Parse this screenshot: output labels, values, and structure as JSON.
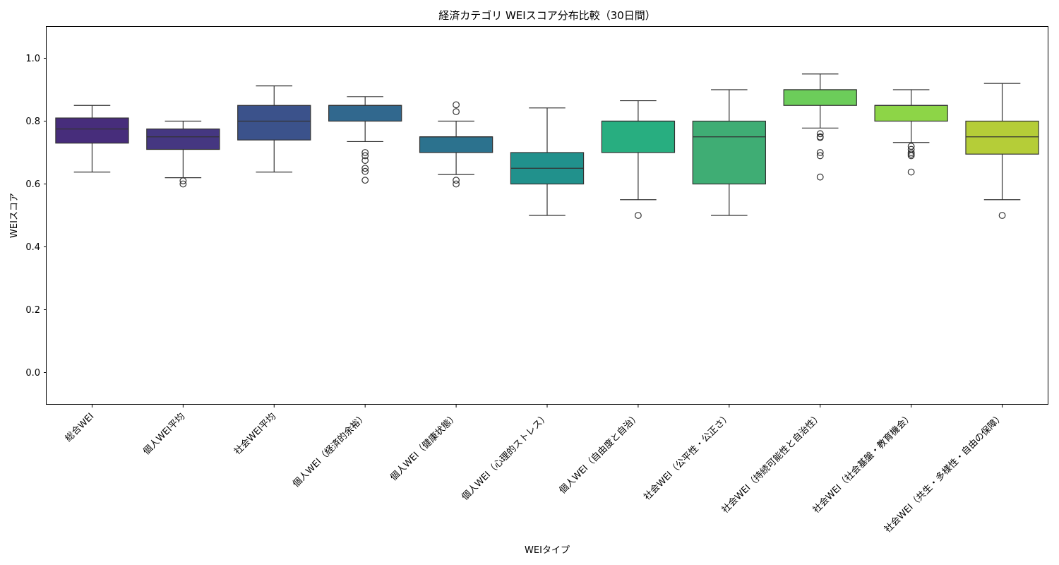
{
  "chart_data": {
    "type": "box",
    "title": "経済カテゴリ WEIスコア分布比較（30日間）",
    "xlabel": "WEIタイプ",
    "ylabel": "WEIスコア",
    "ylim": [
      -0.1,
      1.1
    ],
    "yticks": [
      "0.0",
      "0.2",
      "0.4",
      "0.6",
      "0.8",
      "1.0"
    ],
    "grid": false,
    "legend": "none",
    "categories": [
      "総合WEI",
      "個人WEI平均",
      "社会WEI平均",
      "個人WEI（経済的余裕）",
      "個人WEI（健康状態）",
      "個人WEI（心理的ストレス）",
      "個人WEI（自由度と自治）",
      "社会WEI（公平性・公正さ）",
      "社会WEI（持続可能性と自治性）",
      "社会WEI（社会基盤・教育機会）",
      "社会WEI（共生・多様性・自由の保障）"
    ],
    "boxes": [
      {
        "whisker_low": 0.638,
        "q1": 0.73,
        "median": 0.775,
        "q3": 0.81,
        "whisker_high": 0.85,
        "outliers": [],
        "color": "#472d7b"
      },
      {
        "whisker_low": 0.62,
        "q1": 0.71,
        "median": 0.75,
        "q3": 0.775,
        "whisker_high": 0.8,
        "outliers": [
          0.6,
          0.61
        ],
        "color": "#453781"
      },
      {
        "whisker_low": 0.638,
        "q1": 0.74,
        "median": 0.8,
        "q3": 0.85,
        "whisker_high": 0.912,
        "outliers": [],
        "color": "#3b528b"
      },
      {
        "whisker_low": 0.735,
        "q1": 0.8,
        "median": 0.85,
        "q3": 0.85,
        "whisker_high": 0.878,
        "outliers": [
          0.7,
          0.69,
          0.675,
          0.65,
          0.64,
          0.612
        ],
        "color": "#31688e"
      },
      {
        "whisker_low": 0.63,
        "q1": 0.7,
        "median": 0.75,
        "q3": 0.75,
        "whisker_high": 0.8,
        "outliers": [
          0.852,
          0.83,
          0.612,
          0.6
        ],
        "color": "#2c728e"
      },
      {
        "whisker_low": 0.5,
        "q1": 0.6,
        "median": 0.65,
        "q3": 0.7,
        "whisker_high": 0.842,
        "outliers": [],
        "color": "#21918c"
      },
      {
        "whisker_low": 0.55,
        "q1": 0.7,
        "median": 0.8,
        "q3": 0.8,
        "whisker_high": 0.865,
        "outliers": [
          0.5
        ],
        "color": "#28ae80"
      },
      {
        "whisker_low": 0.5,
        "q1": 0.6,
        "median": 0.75,
        "q3": 0.8,
        "whisker_high": 0.9,
        "outliers": [],
        "color": "#3fad74"
      },
      {
        "whisker_low": 0.778,
        "q1": 0.85,
        "median": 0.9,
        "q3": 0.9,
        "whisker_high": 0.95,
        "outliers": [
          0.76,
          0.75,
          0.748,
          0.7,
          0.69,
          0.622
        ],
        "color": "#6ccd5a"
      },
      {
        "whisker_low": 0.732,
        "q1": 0.8,
        "median": 0.85,
        "q3": 0.85,
        "whisker_high": 0.9,
        "outliers": [
          0.72,
          0.71,
          0.7,
          0.695,
          0.69,
          0.638
        ],
        "color": "#8dd547"
      },
      {
        "whisker_low": 0.55,
        "q1": 0.695,
        "median": 0.75,
        "q3": 0.8,
        "whisker_high": 0.92,
        "outliers": [
          0.5
        ],
        "color": "#b5cd38"
      }
    ]
  }
}
